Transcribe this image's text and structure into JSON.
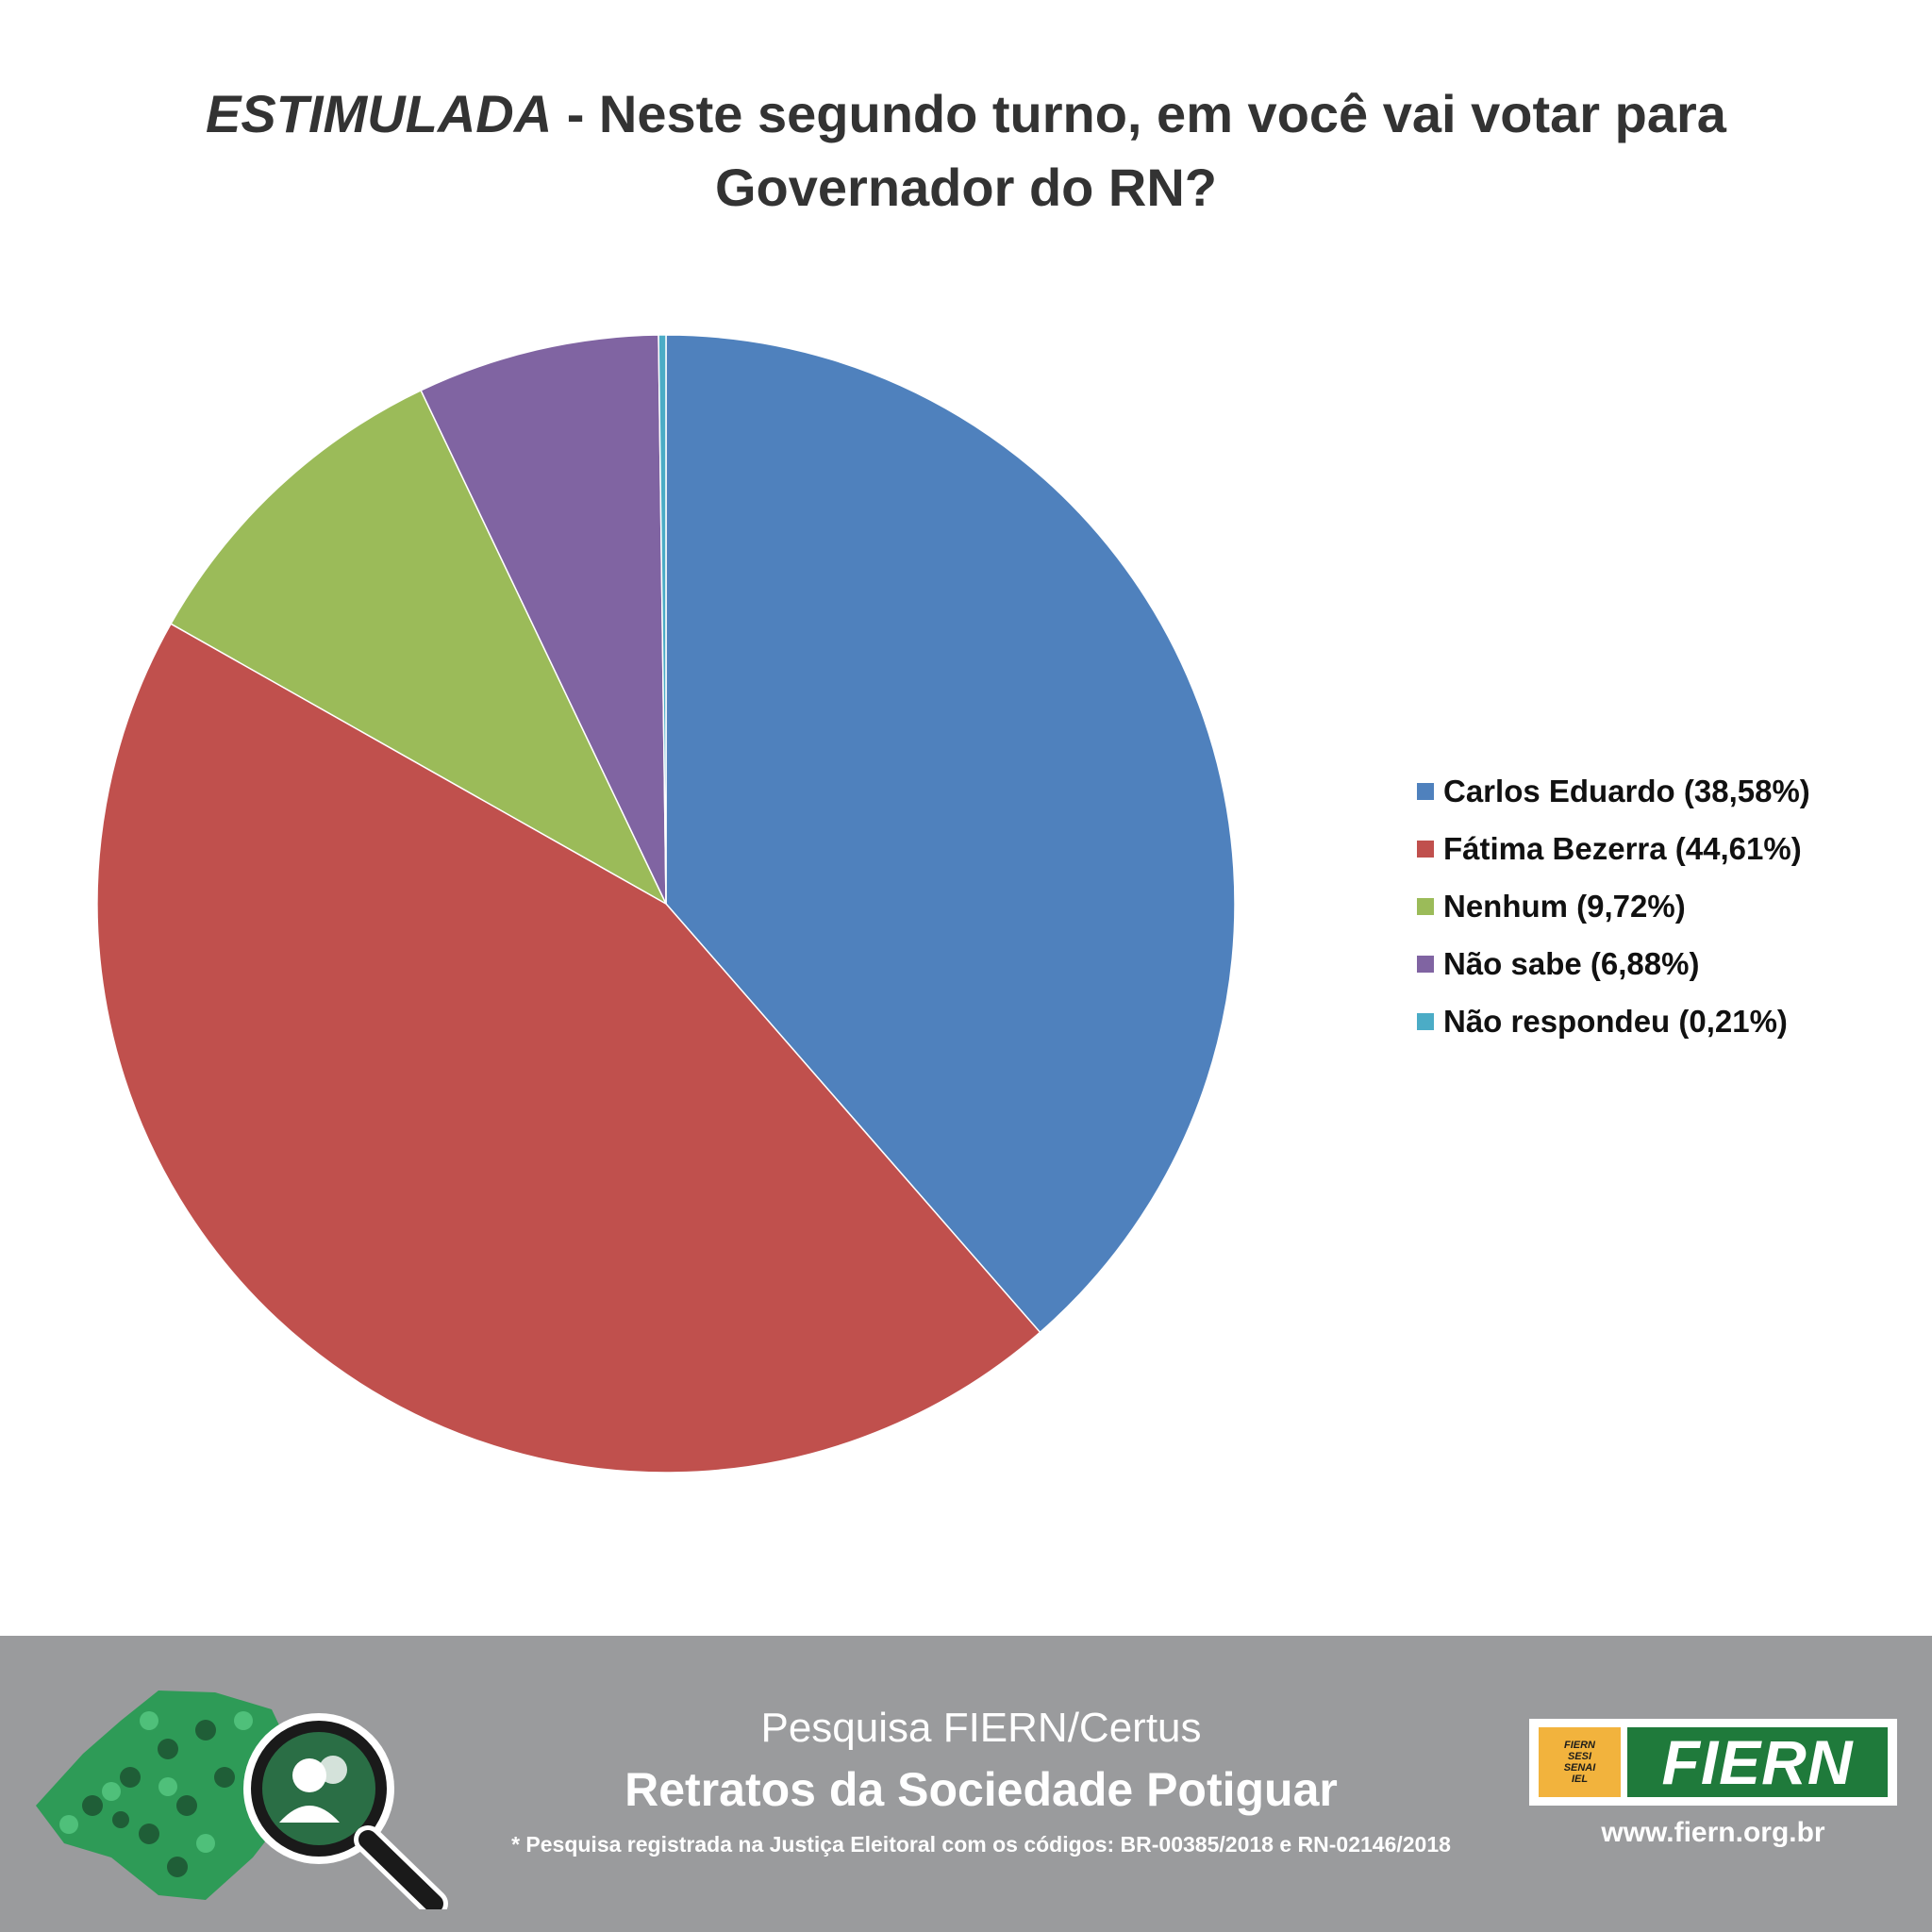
{
  "chart_data": {
    "type": "pie",
    "title_emphasis": "ESTIMULADA",
    "title_rest": " - Neste segundo turno, em você vai votar para",
    "title_line2": "Governador do RN?",
    "legend_position": "right",
    "slices": [
      {
        "label": "Carlos Eduardo (38,58%)",
        "value": 38.58,
        "color": "#4f81bd"
      },
      {
        "label": "Fátima Bezerra (44,61%)",
        "value": 44.61,
        "color": "#c0504d"
      },
      {
        "label": "Nenhum (9,72%)",
        "value": 9.72,
        "color": "#9bbb59"
      },
      {
        "label": "Não sabe (6,88%)",
        "value": 6.88,
        "color": "#8064a2"
      },
      {
        "label": "Não respondeu (0,21%)",
        "value": 0.21,
        "color": "#4bacc6"
      }
    ]
  },
  "footer": {
    "subtitle": "Pesquisa FIERN/Certus",
    "title": "Retratos da Sociedade Potiguar",
    "note": "* Pesquisa registrada na Justiça Eleitoral com os códigos: BR-00385/2018 e RN-02146/2018",
    "logo_icon": "magnifier-people-map-icon",
    "brand": {
      "small_lines": [
        "FIERN",
        "SESI",
        "SENAI",
        "IEL"
      ],
      "name": "FIERN",
      "url": "www.fiern.org.br"
    }
  }
}
